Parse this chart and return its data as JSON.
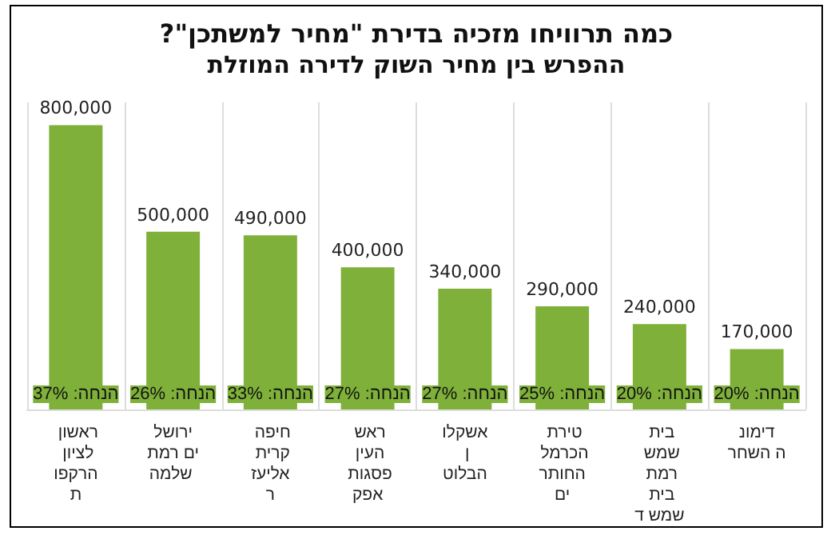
{
  "chart_data": {
    "type": "bar",
    "title": "כמה תרוויחו מזכיה בדירת \"מחיר למשתכן\"?",
    "subtitle": "ההפרש בין מחיר השוק לדירה המוזלת",
    "categories": [
      "ראשון לציון הרקפות",
      "ירושלים רמת שלמה",
      "חיפה קרית אליעזר",
      "ראש העין פסגות אפק",
      "אשקלון הבלוט",
      "טירת הכרמל החותרים",
      "בית שמש רמת בית שמש ד",
      "דימונה השחר"
    ],
    "values": [
      800000,
      500000,
      490000,
      400000,
      340000,
      290000,
      240000,
      170000
    ],
    "color": "#7fb13a",
    "value_labels": [
      "800,000",
      "500,000",
      "490,000",
      "400,000",
      "340,000",
      "290,000",
      "240,000",
      "170,000"
    ],
    "grid": "x",
    "legend": false,
    "annotations": [
      "הנחה: 37%",
      "הנחה: 26%",
      "הנחה: 33%",
      "הנחה: 27%",
      "הנחה: 27%",
      "הנחה: 25%",
      "הנחה: 20%",
      "הנחה: 20%"
    ]
  }
}
